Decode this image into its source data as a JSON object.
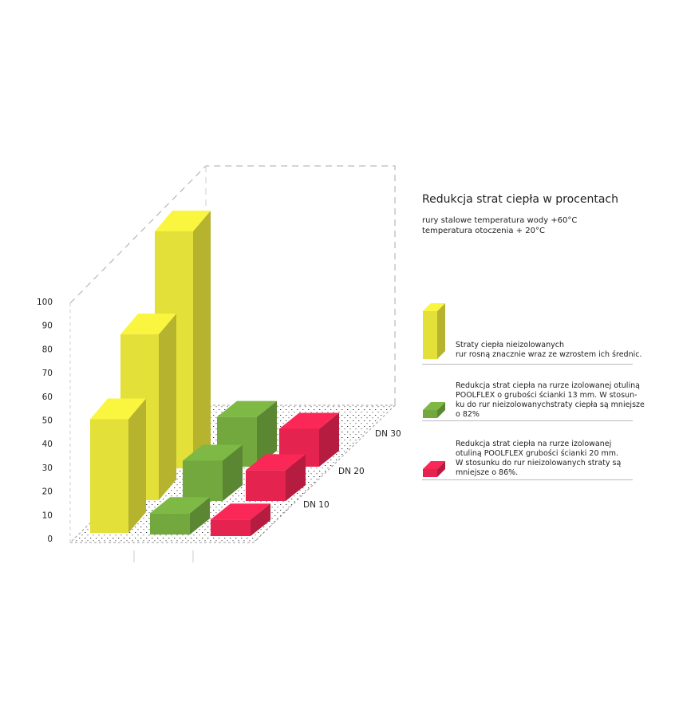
{
  "chart_data": {
    "type": "bar",
    "title": "Redukcja strat ciepła w procentach",
    "subtitle": [
      "rury stalowe temperatura wody +60°C",
      "temperatura otoczenia + 20°C"
    ],
    "categories": [
      "DN 10",
      "DN 20",
      "DN 30"
    ],
    "ylim": [
      0,
      100
    ],
    "yticks": [
      0,
      10,
      20,
      30,
      40,
      50,
      60,
      70,
      80,
      90,
      100
    ],
    "series": [
      {
        "color": "#e3e03a",
        "values": [
          48,
          70,
          100
        ]
      },
      {
        "color": "#72a83e",
        "values": [
          9,
          17,
          21
        ]
      },
      {
        "color": "#e4234f",
        "values": [
          7,
          13,
          16
        ]
      }
    ],
    "legend": [
      {
        "color": "#e3e03a",
        "lines": [
          "Straty ciepła nieizolowanych",
          "rur rosną znacznie wraz ze wzrostem ich średnic."
        ]
      },
      {
        "color": "#72a83e",
        "lines": [
          "Redukcja strat ciepła na rurze izolowanej  otuliną",
          "POOLFLEX o grubości ścianki 13 mm. W stosun-",
          "ku do rur nieizolowanychstraty ciepła są mniejsze",
          "o 82%"
        ]
      },
      {
        "color": "#e4234f",
        "lines": [
          "Redukcja strat ciepła na rurze izolowanej",
          "otuliną POOLFLEX  grubości ścianki 20 mm.",
          "W stosunku do rur nieizolowanych straty są",
          "mniejsze o 86%."
        ]
      }
    ]
  }
}
